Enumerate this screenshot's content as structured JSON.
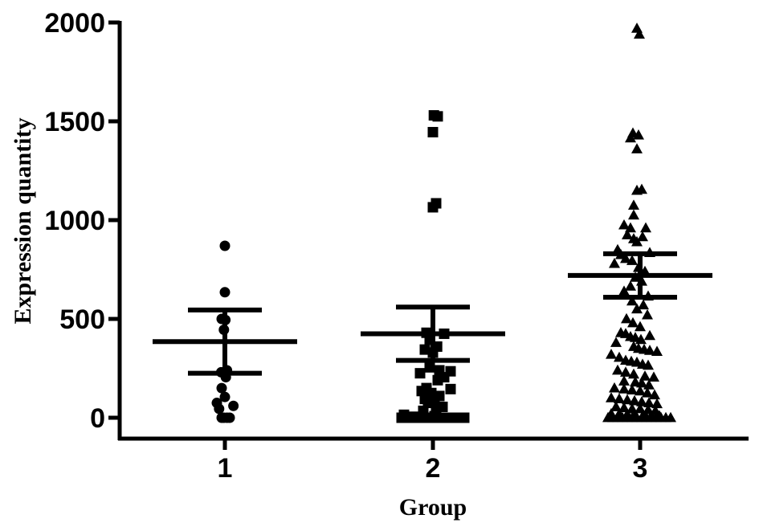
{
  "chart_data": {
    "type": "scatter",
    "title": "",
    "xlabel": "Group",
    "ylabel": "Expression quantity",
    "ylim": [
      0,
      2000
    ],
    "yticks": [
      0,
      500,
      1000,
      1500,
      2000
    ],
    "ytick_labels": [
      "0",
      "500",
      "1000",
      "1500",
      "2000"
    ],
    "categories": [
      "1",
      "2",
      "3"
    ],
    "grid": false,
    "legend": "none",
    "colors": {
      "marker": "#000000",
      "axis": "#000000",
      "background": "#ffffff"
    },
    "series": [
      {
        "category": "1",
        "marker": "circle",
        "mean": 385,
        "sem_upper": 545,
        "sem_lower": 225,
        "points": [
          {
            "dx": 0.0,
            "y": 870
          },
          {
            "dx": 0.0,
            "y": 635
          },
          {
            "dx": -0.2,
            "y": 500
          },
          {
            "dx": 0.03,
            "y": 495
          },
          {
            "dx": -0.06,
            "y": 445
          },
          {
            "dx": 0.13,
            "y": 240
          },
          {
            "dx": -0.23,
            "y": 230
          },
          {
            "dx": 0.06,
            "y": 205
          },
          {
            "dx": -0.2,
            "y": 150
          },
          {
            "dx": 0.0,
            "y": 105
          },
          {
            "dx": -0.5,
            "y": 75
          },
          {
            "dx": 0.53,
            "y": 60
          },
          {
            "dx": -0.36,
            "y": 45
          },
          {
            "dx": -0.2,
            "y": 0
          },
          {
            "dx": -0.06,
            "y": 0
          },
          {
            "dx": 0.13,
            "y": 0
          },
          {
            "dx": 0.3,
            "y": 0
          }
        ]
      },
      {
        "category": "2",
        "marker": "square",
        "mean": 425,
        "sem_upper": 560,
        "sem_lower": 290,
        "points": [
          {
            "dx": 0.06,
            "y": 1530
          },
          {
            "dx": 0.3,
            "y": 1525
          },
          {
            "dx": 0.0,
            "y": 1445
          },
          {
            "dx": 0.2,
            "y": 1085
          },
          {
            "dx": 0.0,
            "y": 1065
          },
          {
            "dx": -0.4,
            "y": 430
          },
          {
            "dx": 0.7,
            "y": 425
          },
          {
            "dx": -0.2,
            "y": 395
          },
          {
            "dx": 0.26,
            "y": 360
          },
          {
            "dx": -0.5,
            "y": 345
          },
          {
            "dx": 0.0,
            "y": 330
          },
          {
            "dx": -0.2,
            "y": 255
          },
          {
            "dx": 0.4,
            "y": 240
          },
          {
            "dx": 1.1,
            "y": 235
          },
          {
            "dx": -0.8,
            "y": 225
          },
          {
            "dx": 0.7,
            "y": 205
          },
          {
            "dx": 0.3,
            "y": 190
          },
          {
            "dx": -0.4,
            "y": 150
          },
          {
            "dx": 1.1,
            "y": 145
          },
          {
            "dx": -0.7,
            "y": 135
          },
          {
            "dx": -0.1,
            "y": 125
          },
          {
            "dx": 0.4,
            "y": 110
          },
          {
            "dx": -0.5,
            "y": 95
          },
          {
            "dx": 0.1,
            "y": 90
          },
          {
            "dx": -0.3,
            "y": 75
          },
          {
            "dx": 0.6,
            "y": 55
          },
          {
            "dx": 0.2,
            "y": 45
          },
          {
            "dx": -0.6,
            "y": 35
          },
          {
            "dx": -1.8,
            "y": 15
          },
          {
            "dx": -1.2,
            "y": 5
          },
          {
            "dx": 0.1,
            "y": 8
          },
          {
            "dx": -1.95,
            "y": 0
          },
          {
            "dx": -1.6,
            "y": 0
          },
          {
            "dx": -1.2,
            "y": 0
          },
          {
            "dx": -0.9,
            "y": 0
          },
          {
            "dx": -0.55,
            "y": 0
          },
          {
            "dx": -0.2,
            "y": 0
          },
          {
            "dx": 0.15,
            "y": 0
          },
          {
            "dx": 0.5,
            "y": 0
          },
          {
            "dx": 0.85,
            "y": 0
          },
          {
            "dx": 1.25,
            "y": 0
          },
          {
            "dx": 1.6,
            "y": 0
          },
          {
            "dx": 1.95,
            "y": 0
          }
        ]
      },
      {
        "category": "3",
        "marker": "triangle",
        "mean": 720,
        "sem_upper": 830,
        "sem_lower": 610,
        "points": [
          {
            "dx": -0.2,
            "y": 1970
          },
          {
            "dx": -0.05,
            "y": 1940
          },
          {
            "dx": -0.45,
            "y": 1440
          },
          {
            "dx": -0.6,
            "y": 1415
          },
          {
            "dx": -0.1,
            "y": 1430
          },
          {
            "dx": -0.2,
            "y": 1360
          },
          {
            "dx": 0.1,
            "y": 1155
          },
          {
            "dx": -0.2,
            "y": 1150
          },
          {
            "dx": -0.4,
            "y": 1075
          },
          {
            "dx": -0.4,
            "y": 1025
          },
          {
            "dx": -1.0,
            "y": 975
          },
          {
            "dx": -0.6,
            "y": 960
          },
          {
            "dx": 0.35,
            "y": 960
          },
          {
            "dx": -0.8,
            "y": 925
          },
          {
            "dx": 0.15,
            "y": 915
          },
          {
            "dx": -0.4,
            "y": 905
          },
          {
            "dx": -0.2,
            "y": 890
          },
          {
            "dx": -1.4,
            "y": 850
          },
          {
            "dx": 0.6,
            "y": 835
          },
          {
            "dx": -1.2,
            "y": 825
          },
          {
            "dx": -0.9,
            "y": 805
          },
          {
            "dx": -0.5,
            "y": 795
          },
          {
            "dx": -1.6,
            "y": 780
          },
          {
            "dx": -0.1,
            "y": 760
          },
          {
            "dx": 0.3,
            "y": 740
          },
          {
            "dx": -0.3,
            "y": 710
          },
          {
            "dx": 0.1,
            "y": 690
          },
          {
            "dx": -0.6,
            "y": 665
          },
          {
            "dx": -1.0,
            "y": 640
          },
          {
            "dx": 0.5,
            "y": 615
          },
          {
            "dx": -0.5,
            "y": 590
          },
          {
            "dx": 0.2,
            "y": 570
          },
          {
            "dx": -0.2,
            "y": 550
          },
          {
            "dx": 0.45,
            "y": 520
          },
          {
            "dx": -0.85,
            "y": 500
          },
          {
            "dx": -0.45,
            "y": 480
          },
          {
            "dx": 0.0,
            "y": 460
          },
          {
            "dx": -1.2,
            "y": 430
          },
          {
            "dx": -0.9,
            "y": 425
          },
          {
            "dx": -0.6,
            "y": 410
          },
          {
            "dx": -0.3,
            "y": 405
          },
          {
            "dx": 0.05,
            "y": 395
          },
          {
            "dx": 0.6,
            "y": 415
          },
          {
            "dx": -1.5,
            "y": 380
          },
          {
            "dx": -0.4,
            "y": 360
          },
          {
            "dx": -0.1,
            "y": 350
          },
          {
            "dx": 0.25,
            "y": 345
          },
          {
            "dx": 0.6,
            "y": 340
          },
          {
            "dx": 1.05,
            "y": 335
          },
          {
            "dx": -1.8,
            "y": 320
          },
          {
            "dx": -1.3,
            "y": 305
          },
          {
            "dx": -0.9,
            "y": 290
          },
          {
            "dx": -0.55,
            "y": 285
          },
          {
            "dx": -0.2,
            "y": 280
          },
          {
            "dx": 0.15,
            "y": 270
          },
          {
            "dx": 0.5,
            "y": 265
          },
          {
            "dx": -1.4,
            "y": 240
          },
          {
            "dx": -0.9,
            "y": 230
          },
          {
            "dx": -0.4,
            "y": 220
          },
          {
            "dx": 0.3,
            "y": 210
          },
          {
            "dx": 0.85,
            "y": 205
          },
          {
            "dx": -1.0,
            "y": 185
          },
          {
            "dx": -0.3,
            "y": 180
          },
          {
            "dx": 0.1,
            "y": 175
          },
          {
            "dx": 0.55,
            "y": 165
          },
          {
            "dx": -1.6,
            "y": 150
          },
          {
            "dx": -1.0,
            "y": 145
          },
          {
            "dx": -0.5,
            "y": 140
          },
          {
            "dx": 0.0,
            "y": 135
          },
          {
            "dx": 0.45,
            "y": 125
          },
          {
            "dx": 0.9,
            "y": 115
          },
          {
            "dx": -1.8,
            "y": 100
          },
          {
            "dx": -1.3,
            "y": 95
          },
          {
            "dx": -0.8,
            "y": 90
          },
          {
            "dx": -0.35,
            "y": 85
          },
          {
            "dx": 0.1,
            "y": 80
          },
          {
            "dx": 0.55,
            "y": 75
          },
          {
            "dx": 1.05,
            "y": 70
          },
          {
            "dx": -1.5,
            "y": 55
          },
          {
            "dx": -1.0,
            "y": 50
          },
          {
            "dx": -0.5,
            "y": 45
          },
          {
            "dx": 0.0,
            "y": 45
          },
          {
            "dx": 0.5,
            "y": 40
          },
          {
            "dx": 0.95,
            "y": 35
          },
          {
            "dx": -1.8,
            "y": 20
          },
          {
            "dx": -1.3,
            "y": 20
          },
          {
            "dx": -0.8,
            "y": 18
          },
          {
            "dx": -0.3,
            "y": 15
          },
          {
            "dx": 0.2,
            "y": 15
          },
          {
            "dx": 0.7,
            "y": 12
          },
          {
            "dx": 1.2,
            "y": 10
          },
          {
            "dx": -2.0,
            "y": 0
          },
          {
            "dx": -1.7,
            "y": 0
          },
          {
            "dx": -1.4,
            "y": 0
          },
          {
            "dx": -1.1,
            "y": 0
          },
          {
            "dx": -0.8,
            "y": 0
          },
          {
            "dx": -0.5,
            "y": 0
          },
          {
            "dx": -0.2,
            "y": 0
          },
          {
            "dx": 0.1,
            "y": 0
          },
          {
            "dx": 0.4,
            "y": 0
          },
          {
            "dx": 0.7,
            "y": 0
          },
          {
            "dx": 1.0,
            "y": 0
          },
          {
            "dx": 1.3,
            "y": 0
          },
          {
            "dx": 1.6,
            "y": 0
          },
          {
            "dx": 1.9,
            "y": 0
          }
        ]
      }
    ]
  }
}
